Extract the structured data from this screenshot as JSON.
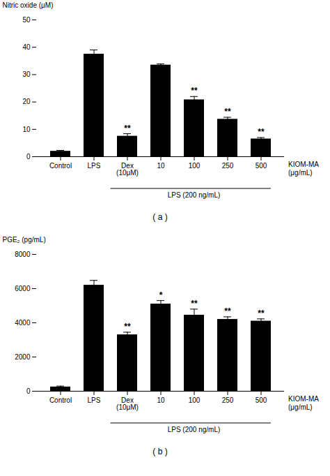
{
  "chart_data": [
    {
      "type": "bar",
      "panel_label": "( a )",
      "ylabel": "Nitric oxide (μM)",
      "categories": [
        "Control",
        "LPS",
        "Dex\n(10μM)",
        "10",
        "100",
        "250",
        "500"
      ],
      "values": [
        2.0,
        37.5,
        7.5,
        33.5,
        20.8,
        13.7,
        6.5
      ],
      "errors": [
        0.3,
        1.5,
        0.9,
        0.4,
        1.2,
        0.7,
        0.5
      ],
      "sig_labels": [
        null,
        null,
        "**",
        null,
        "**",
        "**",
        "**"
      ],
      "kiom_label": "KIOM-MA\n(μg/mL)",
      "lps_label": "LPS (200 ng/mL)",
      "ylim": [
        0,
        50
      ],
      "yticks": [
        0,
        10,
        20,
        30,
        40,
        50
      ]
    },
    {
      "type": "bar",
      "panel_label": "( b )",
      "ylabel": "PGE₂ (pg/mL)",
      "categories": [
        "Control",
        "LPS",
        "Dex\n(10μM)",
        "10",
        "100",
        "250",
        "500"
      ],
      "values": [
        250,
        6200,
        3300,
        5100,
        4450,
        4200,
        4100
      ],
      "errors": [
        50,
        280,
        150,
        200,
        350,
        150,
        130
      ],
      "sig_labels": [
        null,
        null,
        "**",
        "*",
        "**",
        "**",
        "**"
      ],
      "kiom_label": "KIOM-MA\n(μg/mL)",
      "lps_label": "LPS (200 ng/mL)",
      "ylim": [
        0,
        8000
      ],
      "yticks": [
        0,
        2000,
        4000,
        6000,
        8000
      ]
    }
  ]
}
